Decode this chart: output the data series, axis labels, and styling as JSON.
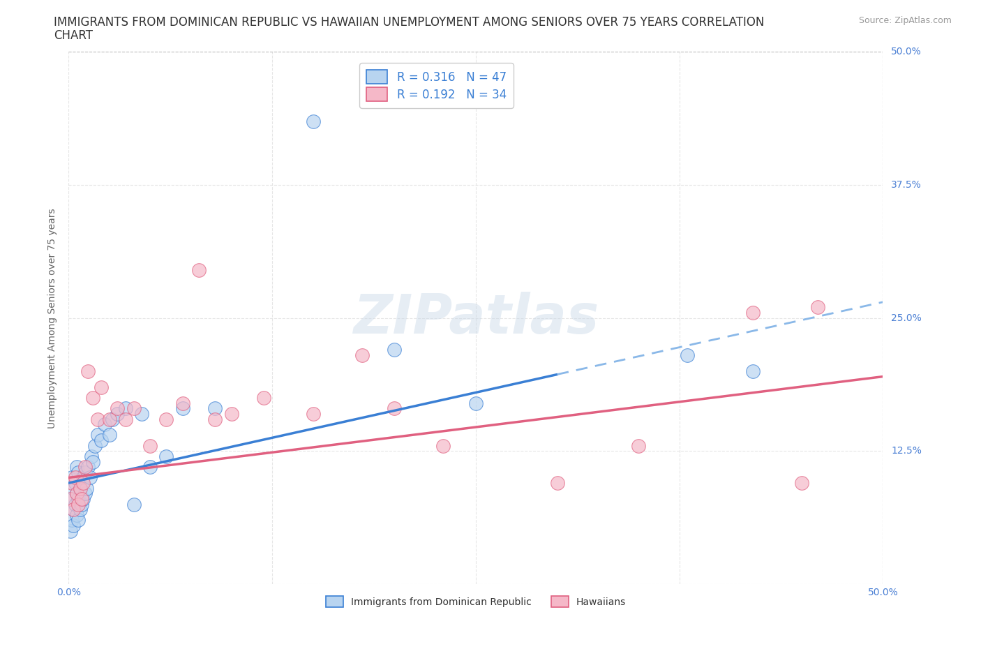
{
  "title_line1": "IMMIGRANTS FROM DOMINICAN REPUBLIC VS HAWAIIAN UNEMPLOYMENT AMONG SENIORS OVER 75 YEARS CORRELATION",
  "title_line2": "CHART",
  "source_text": "Source: ZipAtlas.com",
  "ylabel": "Unemployment Among Seniors over 75 years",
  "xlim": [
    0.0,
    0.5
  ],
  "ylim": [
    0.0,
    0.5
  ],
  "xticks": [
    0.0,
    0.125,
    0.25,
    0.375,
    0.5
  ],
  "yticks": [
    0.0,
    0.125,
    0.25,
    0.375,
    0.5
  ],
  "legend_r1": "0.316",
  "legend_n1": "47",
  "legend_r2": "0.192",
  "legend_n2": "34",
  "color_blue": "#b8d4f0",
  "color_pink": "#f5b8c8",
  "line_color_blue": "#3a7fd4",
  "line_color_pink": "#e06080",
  "line_color_blue_dash": "#8ab8e8",
  "background_color": "#ffffff",
  "grid_color": "#e0e0e0",
  "watermark_text": "ZIPatlas",
  "blue_scatter_x": [
    0.001,
    0.001,
    0.002,
    0.002,
    0.003,
    0.003,
    0.003,
    0.004,
    0.004,
    0.005,
    0.005,
    0.005,
    0.006,
    0.006,
    0.006,
    0.007,
    0.007,
    0.008,
    0.008,
    0.009,
    0.009,
    0.01,
    0.01,
    0.011,
    0.012,
    0.013,
    0.014,
    0.015,
    0.016,
    0.018,
    0.02,
    0.022,
    0.025,
    0.027,
    0.03,
    0.035,
    0.04,
    0.045,
    0.05,
    0.06,
    0.07,
    0.09,
    0.15,
    0.2,
    0.25,
    0.38,
    0.42
  ],
  "blue_scatter_y": [
    0.05,
    0.08,
    0.06,
    0.1,
    0.07,
    0.09,
    0.055,
    0.075,
    0.095,
    0.065,
    0.085,
    0.11,
    0.06,
    0.08,
    0.105,
    0.07,
    0.09,
    0.075,
    0.095,
    0.08,
    0.1,
    0.085,
    0.105,
    0.09,
    0.11,
    0.1,
    0.12,
    0.115,
    0.13,
    0.14,
    0.135,
    0.15,
    0.14,
    0.155,
    0.16,
    0.165,
    0.075,
    0.16,
    0.11,
    0.12,
    0.165,
    0.165,
    0.435,
    0.22,
    0.17,
    0.215,
    0.2
  ],
  "pink_scatter_x": [
    0.001,
    0.002,
    0.003,
    0.004,
    0.005,
    0.006,
    0.007,
    0.008,
    0.009,
    0.01,
    0.012,
    0.015,
    0.018,
    0.02,
    0.025,
    0.03,
    0.035,
    0.04,
    0.05,
    0.06,
    0.07,
    0.08,
    0.09,
    0.1,
    0.12,
    0.15,
    0.18,
    0.2,
    0.23,
    0.3,
    0.35,
    0.42,
    0.45,
    0.46
  ],
  "pink_scatter_y": [
    0.08,
    0.095,
    0.07,
    0.1,
    0.085,
    0.075,
    0.09,
    0.08,
    0.095,
    0.11,
    0.2,
    0.175,
    0.155,
    0.185,
    0.155,
    0.165,
    0.155,
    0.165,
    0.13,
    0.155,
    0.17,
    0.295,
    0.155,
    0.16,
    0.175,
    0.16,
    0.215,
    0.165,
    0.13,
    0.095,
    0.13,
    0.255,
    0.095,
    0.26
  ],
  "blue_line_start_x": 0.0,
  "blue_line_end_solid_x": 0.3,
  "blue_line_end_x": 0.5,
  "blue_line_start_y": 0.095,
  "blue_line_end_y": 0.265,
  "pink_line_start_x": 0.0,
  "pink_line_end_x": 0.5,
  "pink_line_start_y": 0.1,
  "pink_line_end_y": 0.195,
  "title_fontsize": 12,
  "axis_label_fontsize": 10,
  "tick_fontsize": 10,
  "legend_fontsize": 12,
  "watermark_fontsize": 56,
  "watermark_color": "#c8d8e8",
  "watermark_alpha": 0.45,
  "tick_label_color": "#4a7fd4"
}
